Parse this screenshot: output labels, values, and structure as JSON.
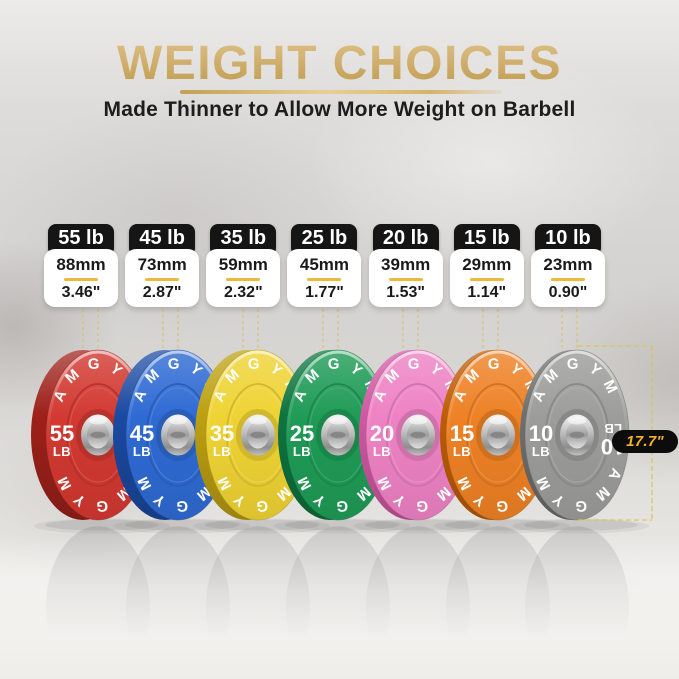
{
  "header": {
    "title": "WEIGHT CHOICES",
    "subtitle": "Made Thinner to Allow More Weight on Barbell"
  },
  "brand": "AMGYM",
  "diameter_callout": "17.7\"",
  "accent_colors": {
    "gold_title": "#c9a45a",
    "card_divider": "#ecba3a",
    "dashed_line": "#ddbf5e",
    "callout_bg": "#0c0c0c",
    "callout_text": "#f5b32b",
    "badge_bg": "#151515"
  },
  "plates": [
    {
      "label": "55 lb",
      "mm": "88mm",
      "inches": "3.46\"",
      "weight": "55",
      "unit": "LB",
      "face_color": "#d23931",
      "rim_color": "#9e211a"
    },
    {
      "label": "45 lb",
      "mm": "73mm",
      "inches": "2.87\"",
      "weight": "45",
      "unit": "LB",
      "face_color": "#2f6ad3",
      "rim_color": "#1b4aa2"
    },
    {
      "label": "35 lb",
      "mm": "59mm",
      "inches": "2.32\"",
      "weight": "35",
      "unit": "LB",
      "face_color": "#efd334",
      "rim_color": "#bda012"
    },
    {
      "label": "25 lb",
      "mm": "45mm",
      "inches": "1.77\"",
      "weight": "25",
      "unit": "LB",
      "face_color": "#1f9b56",
      "rim_color": "#0e7440"
    },
    {
      "label": "20 lb",
      "mm": "39mm",
      "inches": "1.53\"",
      "weight": "20",
      "unit": "LB",
      "face_color": "#ee82c4",
      "rim_color": "#d158a3"
    },
    {
      "label": "15 lb",
      "mm": "29mm",
      "inches": "1.14\"",
      "weight": "15",
      "unit": "LB",
      "face_color": "#ee8125",
      "rim_color": "#bd5d07"
    },
    {
      "label": "10 lb",
      "mm": "23mm",
      "inches": "0.90\"",
      "weight": "10",
      "unit": "LB",
      "face_color": "#9c9c9a",
      "rim_color": "#6f6f6d"
    }
  ]
}
